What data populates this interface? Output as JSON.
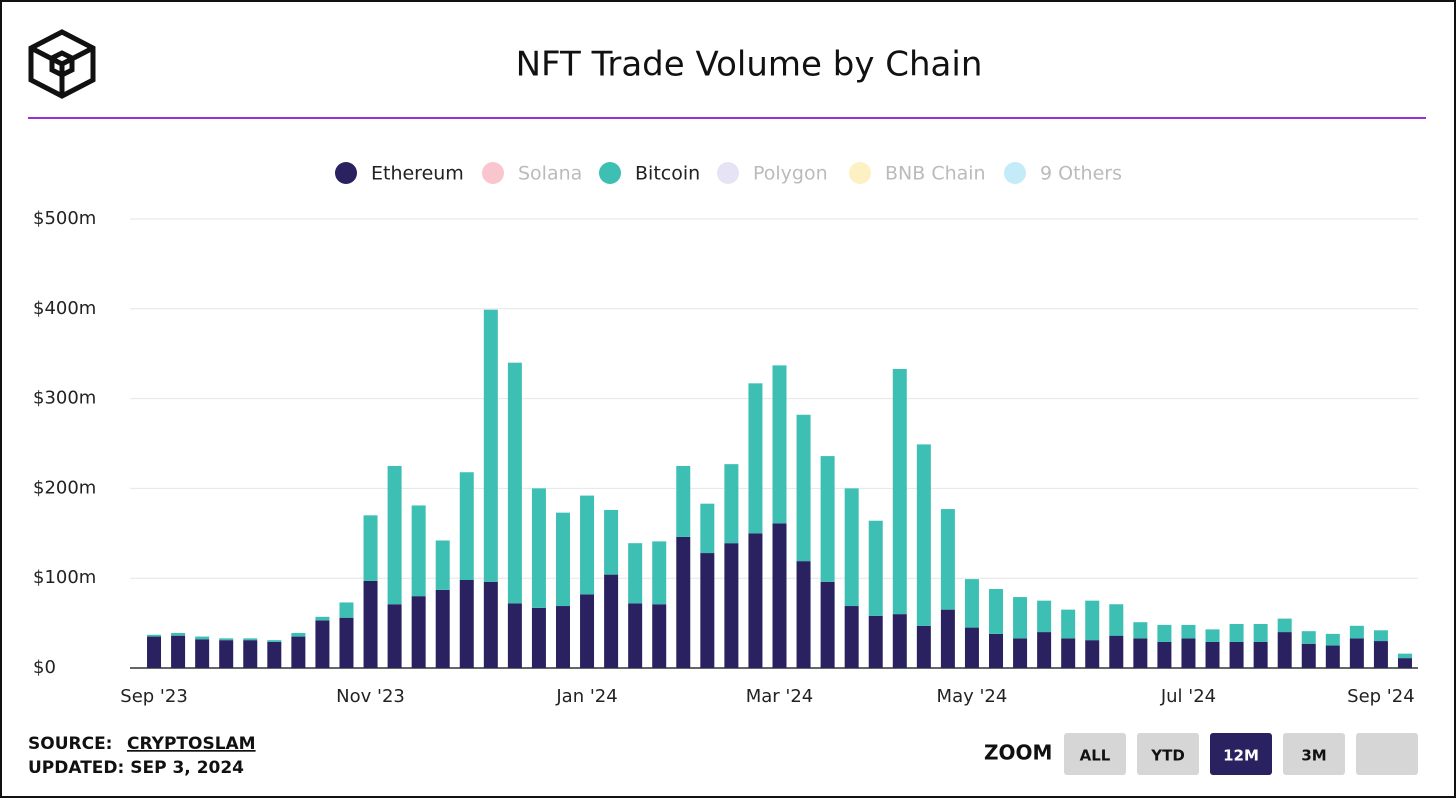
{
  "header": {
    "title": "NFT Trade Volume by Chain"
  },
  "chart_data": {
    "type": "stacked_bar",
    "categories": [
      "Sep '23",
      null,
      null,
      null,
      null,
      null,
      null,
      null,
      null,
      "Nov '23",
      null,
      null,
      null,
      null,
      null,
      null,
      null,
      null,
      "Jan '24",
      null,
      null,
      null,
      null,
      null,
      null,
      null,
      "Mar '24",
      null,
      null,
      null,
      null,
      null,
      null,
      null,
      "May '24",
      null,
      null,
      null,
      null,
      null,
      null,
      null,
      null,
      "Jul '24",
      null,
      null,
      null,
      null,
      null,
      null,
      null,
      "Sep '24",
      null
    ],
    "series": [
      {
        "name": "Ethereum",
        "color": "#2a2160",
        "values": [
          35,
          36,
          32,
          31,
          31,
          29,
          35,
          53,
          56,
          97,
          71,
          80,
          87,
          98,
          96,
          72,
          67,
          69,
          82,
          104,
          72,
          71,
          146,
          128,
          139,
          150,
          161,
          119,
          96,
          69,
          58,
          60,
          47,
          65,
          45,
          38,
          33,
          40,
          33,
          31,
          36,
          33,
          29,
          33,
          29,
          29,
          29,
          40,
          27,
          25,
          33,
          30,
          11
        ]
      },
      {
        "name": "Bitcoin",
        "color": "#3dbfb3",
        "values": [
          2,
          3,
          3,
          2,
          2,
          2,
          4,
          4,
          17,
          73,
          154,
          101,
          55,
          120,
          303,
          268,
          133,
          104,
          110,
          72,
          67,
          70,
          79,
          55,
          88,
          167,
          176,
          163,
          140,
          131,
          106,
          273,
          202,
          112,
          54,
          50,
          46,
          35,
          32,
          44,
          35,
          18,
          19,
          15,
          14,
          20,
          20,
          15,
          14,
          13,
          14,
          12,
          5
        ]
      }
    ],
    "hidden_legend": [
      {
        "name": "Solana",
        "color": "#f9c6cf"
      },
      {
        "name": "Polygon",
        "color": "#e6e3f5"
      },
      {
        "name": "BNB Chain",
        "color": "#fdf0c2"
      },
      {
        "name": "9 Others",
        "color": "#c4ecf8"
      }
    ],
    "ylim": [
      0,
      500
    ],
    "yticks": [
      {
        "value": 0,
        "label": "$0"
      },
      {
        "value": 100,
        "label": "$100m"
      },
      {
        "value": 200,
        "label": "$200m"
      },
      {
        "value": 300,
        "label": "$300m"
      },
      {
        "value": 400,
        "label": "$400m"
      },
      {
        "value": 500,
        "label": "$500m"
      }
    ],
    "grid": true
  },
  "footer": {
    "source_label": "SOURCE:",
    "source": "CRYPTOSLAM",
    "updated": "UPDATED: SEP 3, 2024"
  },
  "zoom": {
    "label": "ZOOM",
    "buttons": [
      "ALL",
      "YTD",
      "12M",
      "3M"
    ],
    "active": "12M"
  }
}
